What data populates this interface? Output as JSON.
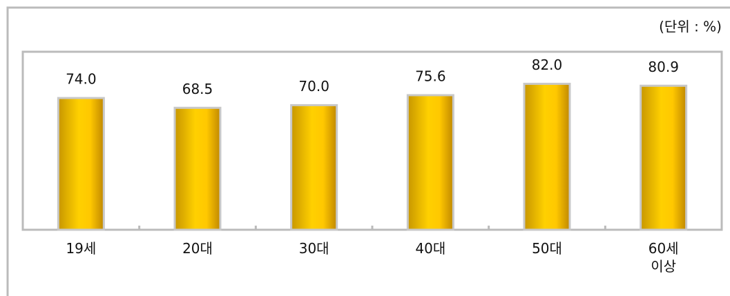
{
  "chart_data": {
    "type": "bar",
    "unit_note": "(단위 : %)",
    "categories": [
      "19세",
      "20대",
      "30대",
      "40대",
      "50대",
      "60세 이상"
    ],
    "values": [
      74.0,
      68.5,
      70.0,
      75.6,
      82.0,
      80.9
    ],
    "value_labels": [
      "74.0",
      "68.5",
      "70.0",
      "75.6",
      "82.0",
      "80.9"
    ],
    "color": "#ffcc00",
    "ylim": [
      0,
      100
    ]
  }
}
